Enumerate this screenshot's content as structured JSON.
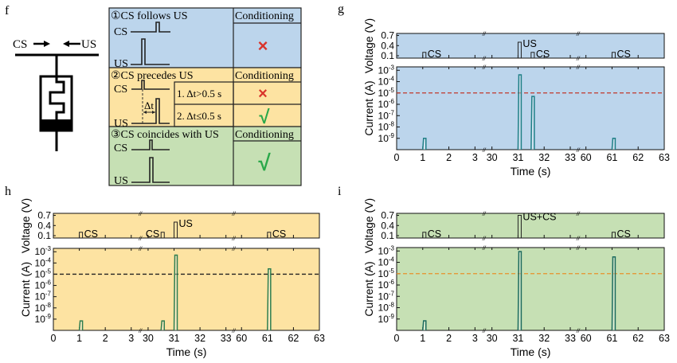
{
  "panel_f": {
    "letter": "f",
    "cs_label": "CS",
    "us_label": "US",
    "rows": [
      {
        "title": "①CS follows US",
        "header": "Conditioning",
        "cs": "CS",
        "us": "US",
        "result": "×"
      },
      {
        "title": "②CS precedes US",
        "header": "Conditioning",
        "cs": "CS",
        "us": "US",
        "delta": "Δt",
        "cases": [
          {
            "label": "1. Δt>0.5 s",
            "result": "×"
          },
          {
            "label": "2. Δt≤0.5 s",
            "result": "√"
          }
        ]
      },
      {
        "title": "③CS coincides with US",
        "header": "Conditioning",
        "cs": "CS",
        "us": "US",
        "result": "√"
      }
    ],
    "colors": {
      "row1": "#bcd5ec",
      "row2": "#fde3a2",
      "row3": "#c6e0b4",
      "cross": "#d9342b",
      "check": "#2aa84a"
    }
  },
  "chart_data": [
    {
      "panel": "g",
      "type": "line",
      "xlabel": "Time (s)",
      "ylabel_top": "Voltage (V)",
      "ylabel_bottom": "Current (A)",
      "x_segments": [
        [
          0,
          3.35
        ],
        [
          29.7,
          33.3
        ],
        [
          59.7,
          63
        ]
      ],
      "x_ticks": [
        0,
        1,
        2,
        3,
        30,
        31,
        32,
        33,
        60,
        61,
        62,
        63
      ],
      "voltage_ylim": [
        0.03,
        0.76
      ],
      "voltage_ticks": [
        "0.1",
        "0.4",
        "0.7"
      ],
      "current_ylim": [
        1e-10,
        0.002
      ],
      "current_scale": "log",
      "current_tick_exponents": [
        -3,
        -4,
        -5,
        -6,
        -7,
        -8,
        -9
      ],
      "background": "#bcd5ec",
      "trace_color": "#1f7f86",
      "threshold": 1e-05,
      "threshold_color": "#c0392b",
      "voltage_pulses": [
        {
          "t": 1,
          "v": 0.2,
          "label": "CS"
        },
        {
          "t": 31,
          "v": 0.5,
          "label": "US"
        },
        {
          "t": 31.5,
          "v": 0.2,
          "label": "CS"
        },
        {
          "t": 61,
          "v": 0.2,
          "label": "CS"
        }
      ],
      "current_pulses": [
        {
          "t": 1,
          "i": 1e-09
        },
        {
          "t": 31,
          "i": 0.0004
        },
        {
          "t": 31.5,
          "i": 5e-06
        },
        {
          "t": 61,
          "i": 1e-09
        }
      ]
    },
    {
      "panel": "h",
      "type": "line",
      "xlabel": "Time (s)",
      "ylabel_top": "Voltage (V)",
      "ylabel_bottom": "Current (A)",
      "x_segments": [
        [
          0,
          3.35
        ],
        [
          29.7,
          33.3
        ],
        [
          59.7,
          63
        ]
      ],
      "x_ticks": [
        0,
        1,
        2,
        3,
        30,
        31,
        32,
        33,
        60,
        61,
        62,
        63
      ],
      "voltage_ylim": [
        0.03,
        0.76
      ],
      "voltage_ticks": [
        "0.1",
        "0.4",
        "0.7"
      ],
      "current_ylim": [
        1e-10,
        0.002
      ],
      "current_scale": "log",
      "current_tick_exponents": [
        -3,
        -4,
        -5,
        -6,
        -7,
        -8,
        -9
      ],
      "background": "#fde3a2",
      "trace_color": "#2e7d4f",
      "threshold": 1e-05,
      "threshold_color": "#222222",
      "voltage_pulses": [
        {
          "t": 1,
          "v": 0.2,
          "label": "CS"
        },
        {
          "t": 30.5,
          "v": 0.2,
          "label": "CS",
          "label_side": "left"
        },
        {
          "t": 31,
          "v": 0.5,
          "label": "US"
        },
        {
          "t": 61,
          "v": 0.2,
          "label": "CS"
        }
      ],
      "current_pulses": [
        {
          "t": 1,
          "i": 7e-10
        },
        {
          "t": 30.5,
          "i": 7e-10
        },
        {
          "t": 31,
          "i": 0.0005
        },
        {
          "t": 61,
          "i": 3e-05
        }
      ]
    },
    {
      "panel": "i",
      "type": "line",
      "xlabel": "Time (s)",
      "ylabel_top": "Voltage (V)",
      "ylabel_bottom": "Current (A)",
      "x_segments": [
        [
          0,
          3.35
        ],
        [
          29.7,
          33.3
        ],
        [
          59.7,
          63
        ]
      ],
      "x_ticks": [
        0,
        1,
        2,
        3,
        30,
        31,
        32,
        33,
        60,
        61,
        62,
        63
      ],
      "voltage_ylim": [
        0.03,
        0.76
      ],
      "voltage_ticks": [
        "0.1",
        "0.4",
        "0.7"
      ],
      "current_ylim": [
        1e-10,
        0.002
      ],
      "current_scale": "log",
      "current_tick_exponents": [
        -3,
        -4,
        -5,
        -6,
        -7,
        -8,
        -9
      ],
      "background": "#c6e0b4",
      "trace_color": "#1d6b5e",
      "threshold": 1e-05,
      "threshold_color": "#e8902a",
      "voltage_pulses": [
        {
          "t": 1,
          "v": 0.2,
          "label": "CS"
        },
        {
          "t": 31,
          "v": 0.7,
          "label": "US+CS"
        },
        {
          "t": 61,
          "v": 0.2,
          "label": "CS"
        }
      ],
      "current_pulses": [
        {
          "t": 1,
          "i": 7e-10
        },
        {
          "t": 31,
          "i": 0.0009
        },
        {
          "t": 61,
          "i": 0.0003
        }
      ]
    }
  ]
}
